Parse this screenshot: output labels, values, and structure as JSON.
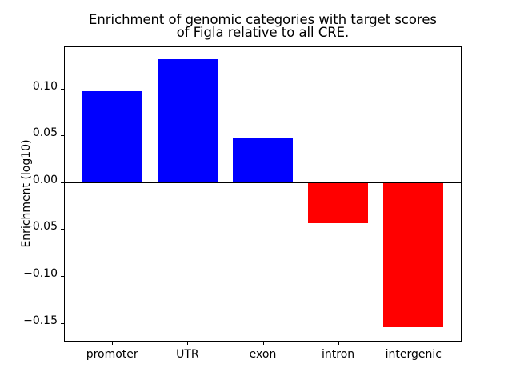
{
  "figure": {
    "background": "#ffffff"
  },
  "chart_data": {
    "type": "bar",
    "title": "Enrichment of genomic categories with target scores\nof Figla relative to all CRE.",
    "title_lines": [
      "Enrichment of genomic categories with target scores",
      "of Figla relative to all CRE."
    ],
    "xlabel": "",
    "ylabel": "Enrichment (log10)",
    "categories": [
      "promoter",
      "UTR",
      "exon",
      "intron",
      "intergenic"
    ],
    "values": [
      0.097,
      0.131,
      0.048,
      -0.044,
      -0.155
    ],
    "bar_colors": [
      "#0000ff",
      "#0000ff",
      "#0000ff",
      "#ff0000",
      "#ff0000"
    ],
    "positive_color": "#0000ff",
    "negative_color": "#ff0000",
    "axis_color": "#000000",
    "text_color": "#000000",
    "yticks": [
      0.1,
      0.05,
      0.0,
      -0.05,
      -0.1,
      -0.15
    ],
    "ylim": [
      -0.17,
      0.145
    ],
    "xlim": [
      -0.64,
      4.64
    ],
    "bar_width": 0.8,
    "grid": false,
    "zero_line": true,
    "legend_position": "none"
  }
}
